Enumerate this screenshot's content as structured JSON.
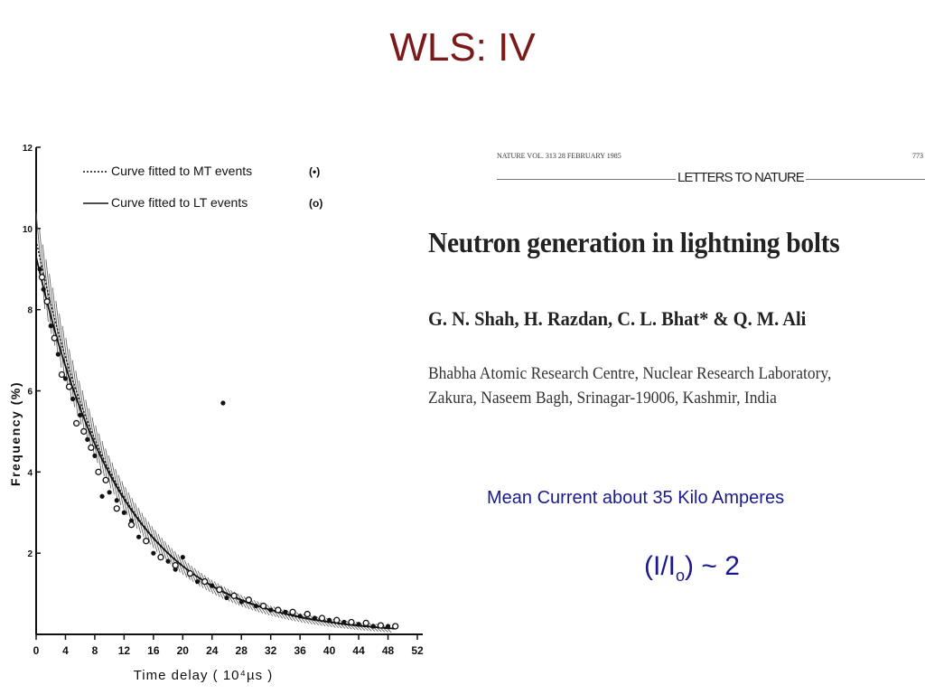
{
  "slide": {
    "title": "WLS: IV",
    "mean_current": "Mean Current about 35 Kilo Amperes",
    "ratio_prefix": "(I/I",
    "ratio_sub": "o",
    "ratio_suffix": ") ~ 2"
  },
  "paper": {
    "masthead_left": "NATURE VOL. 313 28 FEBRUARY 1985",
    "masthead_center": "LETTERS TO NATURE",
    "masthead_right": "773",
    "title": "Neutron generation in lightning bolts",
    "authors": "G. N. Shah, H. Razdan, C. L. Bhat* & Q. M. Ali",
    "affiliation_line1": "Bhabha Atomic Research Centre, Nuclear Research Laboratory,",
    "affiliation_line2": "Zakura, Naseem Bagh, Srinagar-19006, Kashmir, India"
  },
  "chart_data": {
    "type": "scatter",
    "xlabel": "Time delay ( 10⁴µs )",
    "ylabel": "Frequency (%)",
    "xlim": [
      0,
      52
    ],
    "ylim": [
      0,
      12
    ],
    "x_ticks": [
      0,
      4,
      8,
      12,
      16,
      20,
      24,
      28,
      32,
      36,
      40,
      44,
      48,
      52
    ],
    "y_ticks": [
      2,
      4,
      6,
      8,
      10,
      12
    ],
    "legend": [
      {
        "line": "dotted",
        "label": "Curve fitted to MT events",
        "marker_label": "(•)"
      },
      {
        "line": "solid",
        "label": "Curve fitted to LT events",
        "marker_label": "(o)"
      }
    ],
    "curves": [
      {
        "name": "Curve fitted to MT events",
        "style": "dotted",
        "a": 9.7,
        "decay": 11.4
      },
      {
        "name": "Curve fitted to LT events",
        "style": "solid",
        "a": 9.3,
        "decay": 11.7
      }
    ],
    "series": [
      {
        "name": "MT events",
        "marker": "filled",
        "x": [
          0.5,
          1,
          2,
          3,
          4,
          5,
          6,
          7,
          8,
          9,
          10,
          11,
          12,
          13,
          14,
          15,
          16,
          17,
          18,
          19,
          20,
          22,
          24,
          25.5,
          26,
          28,
          30,
          32,
          34,
          36,
          38,
          40,
          42,
          44,
          46,
          48
        ],
        "y": [
          9.0,
          8.5,
          7.6,
          6.9,
          6.3,
          5.8,
          5.4,
          4.8,
          4.4,
          3.4,
          3.5,
          3.3,
          3.0,
          2.8,
          2.4,
          2.3,
          2.0,
          1.9,
          1.8,
          1.6,
          1.9,
          1.3,
          1.2,
          5.7,
          0.9,
          0.8,
          0.7,
          0.6,
          0.55,
          0.45,
          0.4,
          0.35,
          0.3,
          0.25,
          0.2,
          0.2
        ]
      },
      {
        "name": "LT events",
        "marker": "open",
        "x": [
          0.8,
          1.5,
          2.5,
          3.5,
          4.5,
          5.5,
          6.5,
          7.5,
          8.5,
          9.5,
          11,
          13,
          15,
          17,
          19,
          21,
          23,
          25,
          27,
          29,
          31,
          33,
          35,
          37,
          39,
          41,
          43,
          45,
          47,
          49
        ],
        "y": [
          8.8,
          8.2,
          7.3,
          6.4,
          6.1,
          5.2,
          5.0,
          4.6,
          4.0,
          3.8,
          3.1,
          2.7,
          2.3,
          1.9,
          1.7,
          1.5,
          1.3,
          1.1,
          0.95,
          0.85,
          0.7,
          0.6,
          0.55,
          0.5,
          0.4,
          0.35,
          0.3,
          0.28,
          0.22,
          0.2
        ]
      }
    ]
  }
}
